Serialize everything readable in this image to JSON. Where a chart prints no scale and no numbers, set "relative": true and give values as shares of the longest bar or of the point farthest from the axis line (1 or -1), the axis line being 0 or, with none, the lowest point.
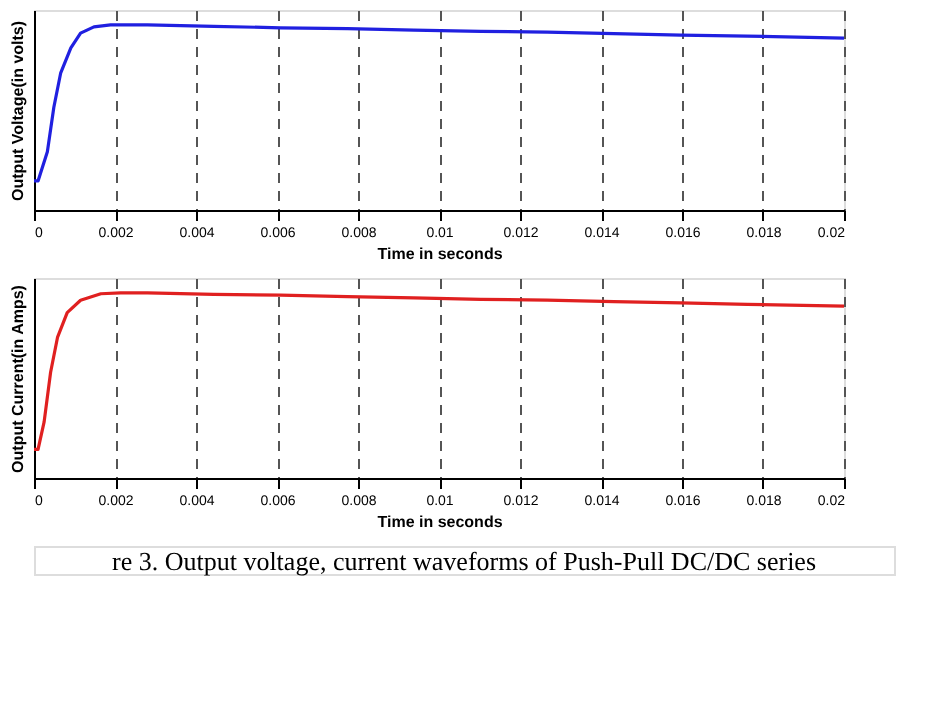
{
  "chart_data": [
    {
      "type": "line",
      "relative": true,
      "ylabel": "Output Voltage(in volts)",
      "xlabel": "Time in seconds",
      "grid": "x",
      "line_style": "solid",
      "xlim": [
        0,
        0.02
      ],
      "xticks": [
        0,
        0.002,
        0.004,
        0.006,
        0.008,
        0.01,
        0.012,
        0.014,
        0.016,
        0.018,
        0.02
      ],
      "series": [
        {
          "color": "#2020e0",
          "x": [
            0,
            0.0001,
            0.00033,
            0.00049,
            0.00066,
            0.00091,
            0.00115,
            0.00148,
            0.00189,
            0.0028,
            0.00444,
            0.00609,
            0.00774,
            0.00938,
            0.01103,
            0.01267,
            0.01432,
            0.01597,
            0.01761,
            0.02
          ],
          "values": [
            0.157,
            0.157,
            0.315,
            0.555,
            0.741,
            0.875,
            0.955,
            0.989,
            1,
            1,
            0.992,
            0.984,
            0.979,
            0.971,
            0.965,
            0.96,
            0.952,
            0.944,
            0.939,
            0.928
          ]
        }
      ]
    },
    {
      "type": "line",
      "relative": true,
      "ylabel": "Output Current(in Amps)",
      "xlabel": "Time in seconds",
      "grid": "x",
      "line_style": "solid",
      "xlim": [
        0,
        0.02
      ],
      "xticks": [
        0,
        0.002,
        0.004,
        0.006,
        0.008,
        0.01,
        0.012,
        0.014,
        0.016,
        0.018,
        0.02
      ],
      "annotations": [
        "re 3.    Output voltage, current waveforms of Push-Pull DC/DC series"
      ],
      "series": [
        {
          "color": "#e02020",
          "x": [
            0,
            0.0001,
            0.00025,
            0.00041,
            0.00058,
            0.00082,
            0.00115,
            0.00165,
            0.00214,
            0.0028,
            0.00444,
            0.00609,
            0.00774,
            0.00938,
            0.01103,
            0.01267,
            0.01432,
            0.01597,
            0.01761,
            0.02
          ],
          "values": [
            0.155,
            0.155,
            0.303,
            0.571,
            0.759,
            0.893,
            0.96,
            0.995,
            1,
            1,
            0.992,
            0.987,
            0.979,
            0.973,
            0.965,
            0.96,
            0.952,
            0.946,
            0.938,
            0.928
          ]
        }
      ]
    }
  ]
}
